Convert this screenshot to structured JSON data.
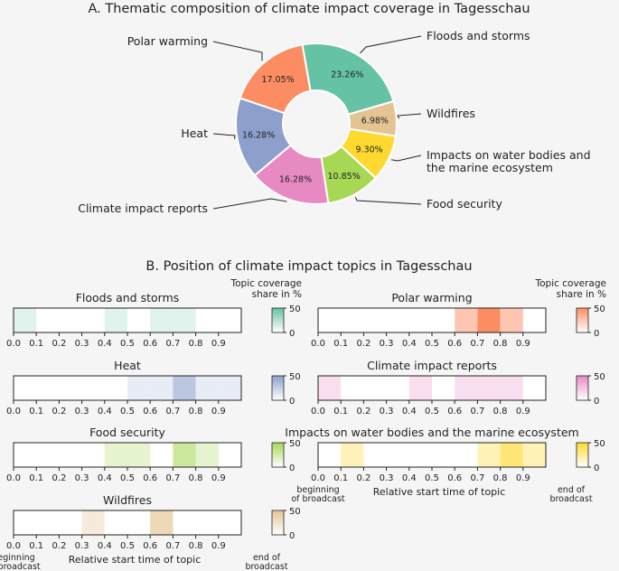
{
  "chart_data": [
    {
      "type": "pie",
      "title": "A. Thematic composition of climate impact coverage in Tagesschau",
      "slices": [
        {
          "label": "Floods and storms",
          "value": 23.26,
          "color": "#66c2a5"
        },
        {
          "label": "Wildfires",
          "value": 6.98,
          "color": "#e5c494"
        },
        {
          "label": "Impacts on water bodies and\nthe marine ecosystem",
          "value": 9.3,
          "color": "#ffd92f"
        },
        {
          "label": "Food security",
          "value": 10.85,
          "color": "#a6d854"
        },
        {
          "label": "Climate impact reports",
          "value": 16.28,
          "color": "#e78ac3"
        },
        {
          "label": "Heat",
          "value": 16.28,
          "color": "#8da0cb"
        },
        {
          "label": "Polar warming",
          "value": 17.05,
          "color": "#fc8d62"
        }
      ]
    },
    {
      "type": "heatmap",
      "title": "B. Position of climate impact topics in Tagesschau",
      "xlabel": "Relative start time of topic",
      "x_start_label": "beginning\nof broadcast",
      "x_end_label": "end of\nbroadcast",
      "colorbar_title": "Topic coverage\nshare in %",
      "colorbar_ticks": [
        0,
        50
      ],
      "xlim": [
        0,
        1
      ],
      "x_ticks": [
        "0.0",
        "0.1",
        "0.2",
        "0.3",
        "0.4",
        "0.5",
        "0.6",
        "0.7",
        "0.8",
        "0.9"
      ],
      "bins": [
        0.0,
        0.1,
        0.2,
        0.3,
        0.4,
        0.5,
        0.6,
        0.7,
        0.8,
        0.9
      ],
      "panels": [
        {
          "name": "Floods and storms",
          "color": "#66c2a5",
          "values": [
            10,
            0,
            0,
            0,
            10,
            0,
            10,
            10,
            0,
            0
          ]
        },
        {
          "name": "Polar warming",
          "color": "#fc8d62",
          "values": [
            0,
            0,
            0,
            0,
            0,
            0,
            25,
            50,
            25,
            0
          ]
        },
        {
          "name": "Heat",
          "color": "#8da0cb",
          "values": [
            0,
            0,
            0,
            0,
            0,
            10,
            10,
            30,
            10,
            10
          ]
        },
        {
          "name": "Climate impact reports",
          "color": "#e78ac3",
          "values": [
            14,
            0,
            0,
            0,
            14,
            0,
            14,
            14,
            14,
            0
          ]
        },
        {
          "name": "Food security",
          "color": "#a6d854",
          "values": [
            0,
            0,
            0,
            0,
            14,
            14,
            0,
            29,
            14,
            0
          ]
        },
        {
          "name": "Impacts on water bodies and the marine ecosystem",
          "color": "#ffd92f",
          "values": [
            0,
            17,
            0,
            0,
            0,
            0,
            0,
            17,
            33,
            17
          ]
        },
        {
          "name": "Wildfires",
          "color": "#e5c494",
          "values": [
            0,
            0,
            0,
            17,
            0,
            0,
            33,
            0,
            0,
            0
          ]
        }
      ]
    }
  ]
}
